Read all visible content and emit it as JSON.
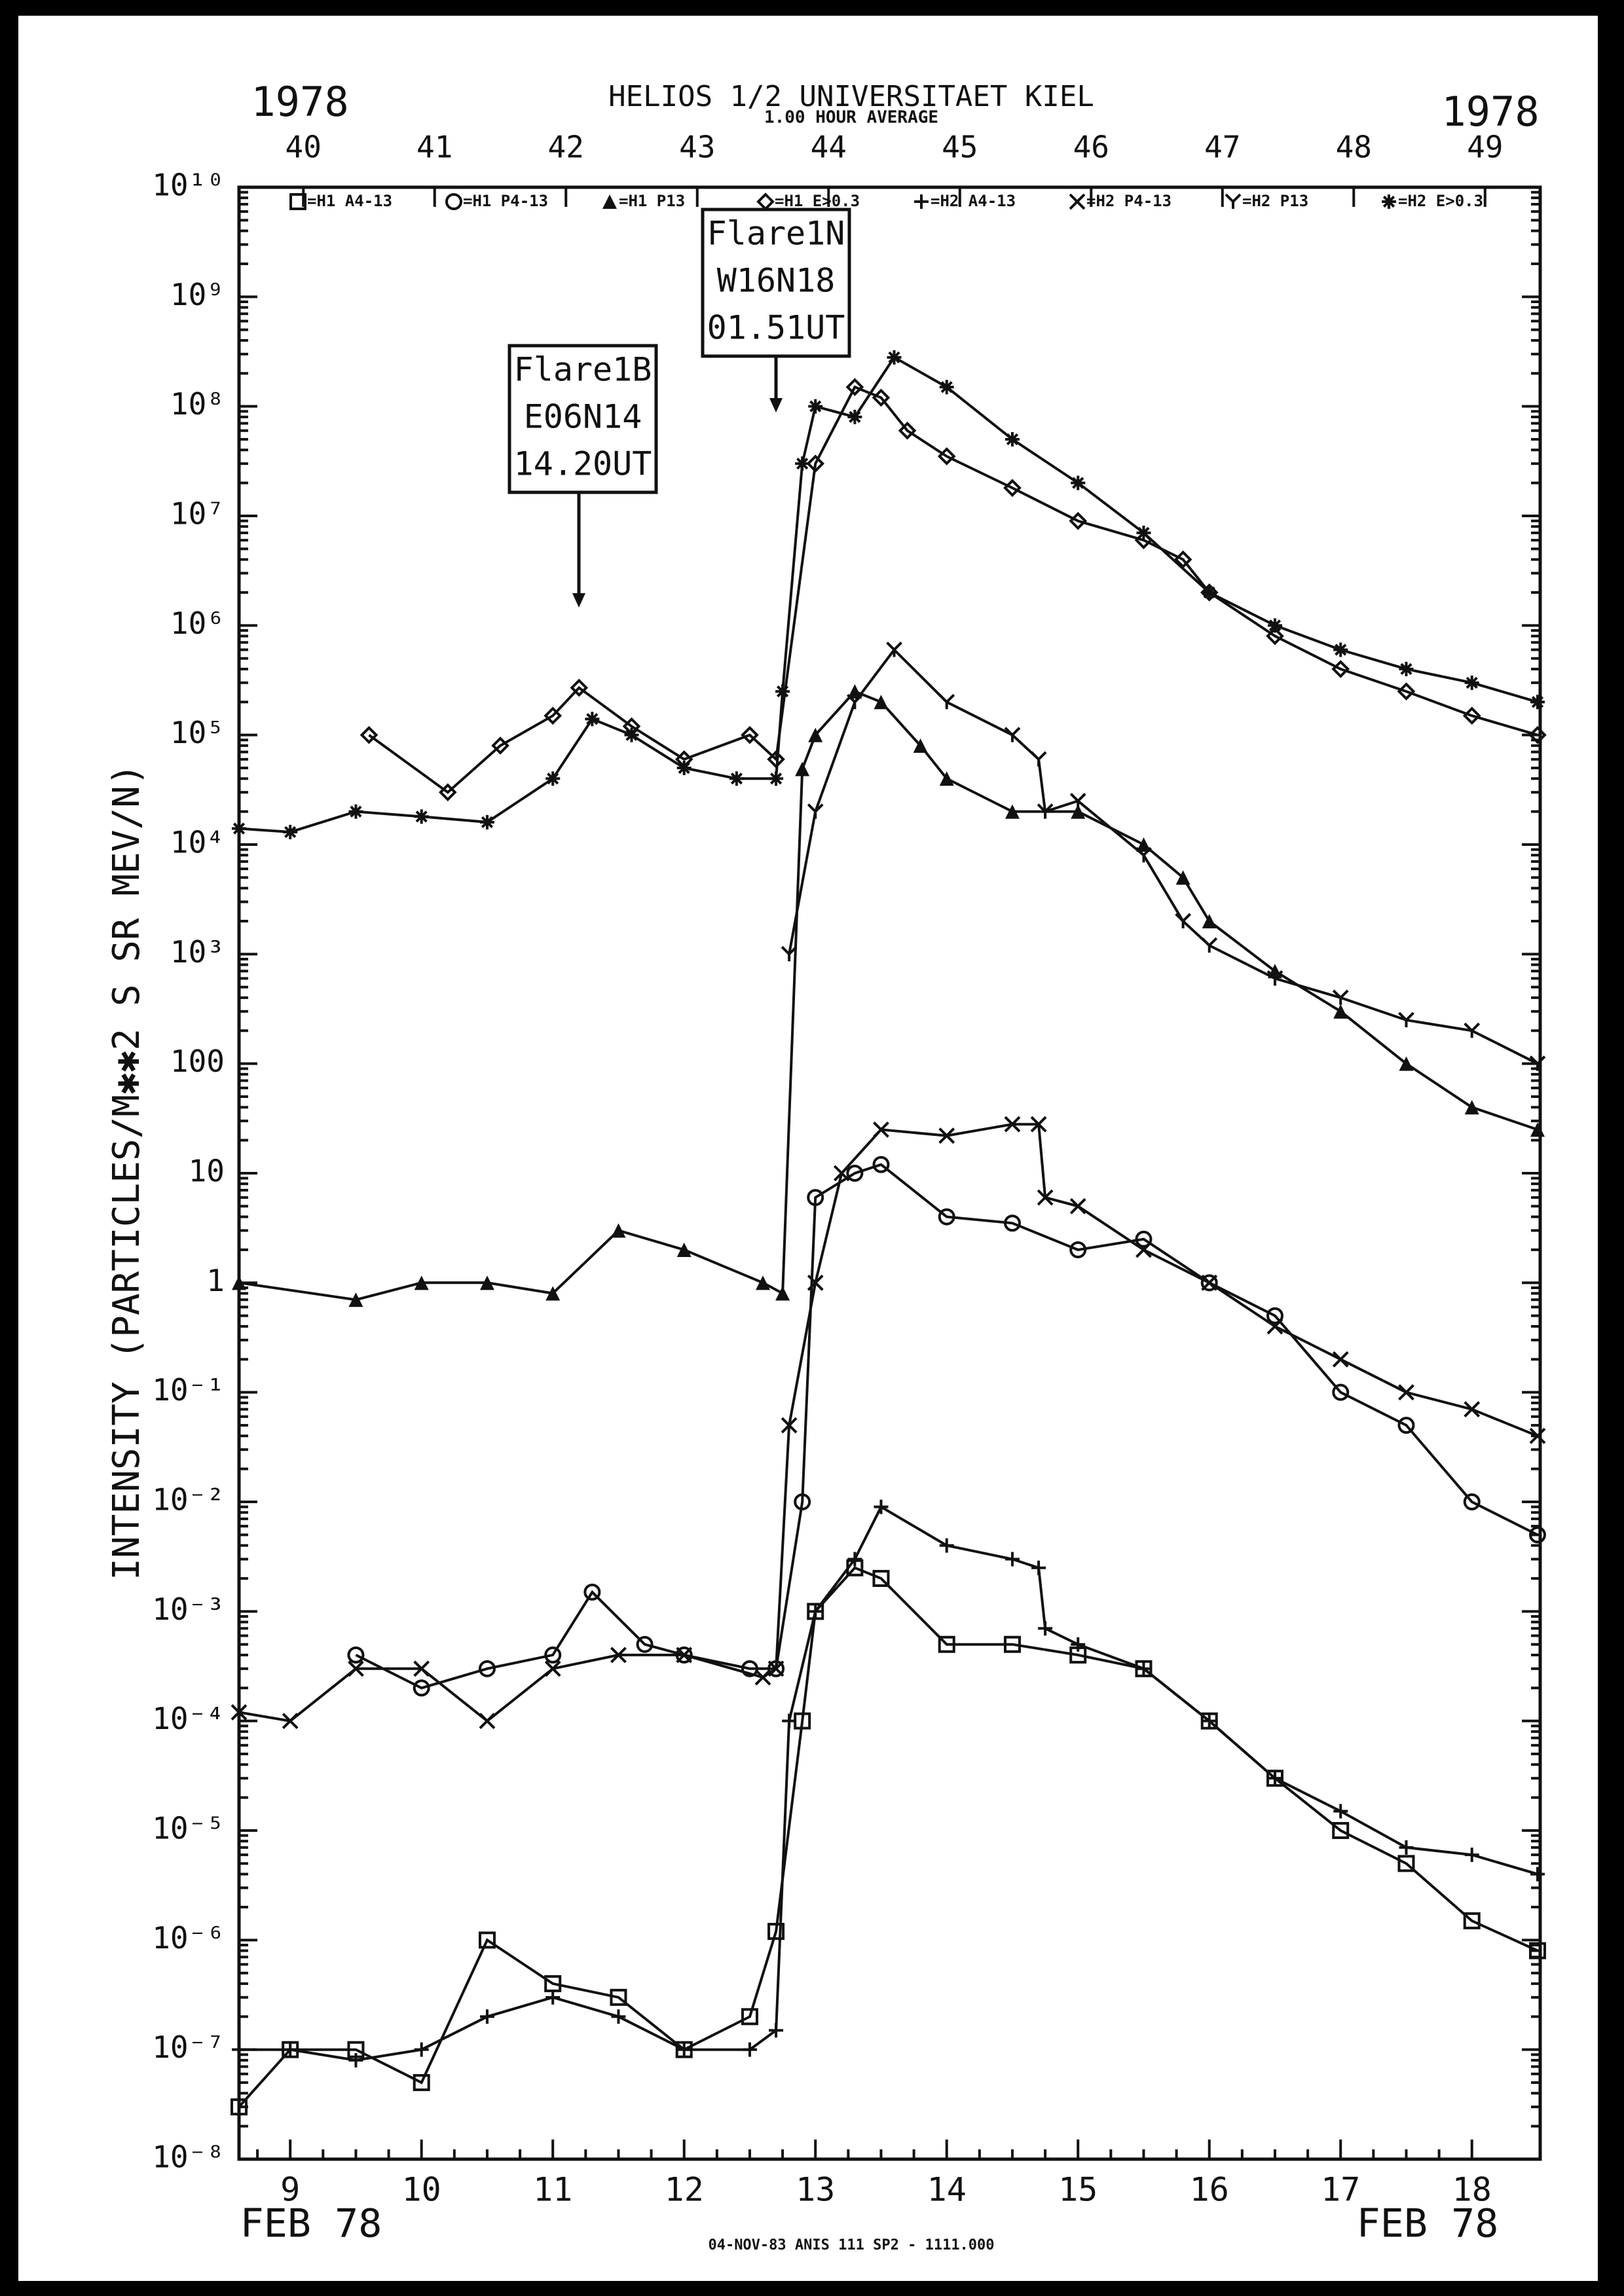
{
  "chart_data": {
    "type": "line",
    "title": "HELIOS 1/2  UNIVERSITAET KIEL",
    "subtitle": "1.00 HOUR AVERAGE",
    "year_left": "1978",
    "year_right": "1978",
    "month_left": "FEB 78",
    "month_right": "FEB 78",
    "ylabel": "INTENSITY (PARTICLES/M✱✱2 S SR MEV/N)",
    "footer": "04-NOV-83 ANIS 111 SP2 - 1111.000",
    "log_y": true,
    "xlim": [
      8.61,
      18.52
    ],
    "xticks": [
      9,
      10,
      11,
      12,
      13,
      14,
      15,
      16,
      17,
      18
    ],
    "x2lim": [
      39.51,
      49.42
    ],
    "x2ticks": [
      40,
      41,
      42,
      43,
      44,
      45,
      46,
      47,
      48,
      49
    ],
    "ylim": [
      1e-08,
      10000000000
    ],
    "yticks": [
      {
        "value": 10000000000,
        "label": "10¹⁰"
      },
      {
        "value": 1000000000,
        "label": "10⁹"
      },
      {
        "value": 100000000,
        "label": "10⁸"
      },
      {
        "value": 10000000,
        "label": "10⁷"
      },
      {
        "value": 1000000,
        "label": "10⁶"
      },
      {
        "value": 100000,
        "label": "10⁵"
      },
      {
        "value": 10000,
        "label": "10⁴"
      },
      {
        "value": 1000,
        "label": "10³"
      },
      100,
      10,
      1,
      {
        "value": 0.1,
        "label": "10⁻¹"
      },
      {
        "value": 0.01,
        "label": "10⁻²"
      },
      {
        "value": 0.001,
        "label": "10⁻³"
      },
      {
        "value": 0.0001,
        "label": "10⁻⁴"
      },
      {
        "value": 1e-05,
        "label": "10⁻⁵"
      },
      {
        "value": 1e-06,
        "label": "10⁻⁶"
      },
      {
        "value": 1e-07,
        "label": "10⁻⁷"
      },
      {
        "value": 1e-08,
        "label": "10⁻⁸"
      }
    ],
    "annotations": [
      {
        "lines": [
          "Flare1B",
          "E06N14",
          "14.20UT"
        ]
      },
      {
        "lines": [
          "Flare1N",
          "W16N18",
          "01.51UT"
        ]
      }
    ],
    "series": [
      {
        "name": "=H1 A4-13",
        "marker": "square",
        "color": "#111111",
        "x": [
          8.61,
          9,
          9.5,
          10,
          10.5,
          11,
          11.5,
          12,
          12.5,
          12.7,
          12.9,
          13,
          13.3,
          13.5,
          14,
          14.5,
          15,
          15.5,
          16,
          16.5,
          17,
          17.5,
          18,
          18.5
        ],
        "values": [
          3e-08,
          1e-07,
          1e-07,
          5e-08,
          1e-06,
          4e-07,
          3e-07,
          1e-07,
          2e-07,
          1.2e-06,
          0.0001,
          0.001,
          0.0025,
          0.002,
          0.0005,
          0.0005,
          0.0004,
          0.0003,
          0.0001,
          3e-05,
          1e-05,
          5e-06,
          1.5e-06,
          8e-07
        ]
      },
      {
        "name": "=H1 P4-13",
        "marker": "circle",
        "color": "#111111",
        "x": [
          9.5,
          10,
          10.5,
          11,
          11.3,
          11.7,
          12,
          12.5,
          12.7,
          12.9,
          13,
          13.3,
          13.5,
          14,
          14.5,
          15,
          15.5,
          16,
          16.5,
          17,
          17.5,
          18,
          18.5
        ],
        "values": [
          0.0004,
          0.0002,
          0.0003,
          0.0004,
          0.0015,
          0.0005,
          0.0004,
          0.0003,
          0.0003,
          0.01,
          6,
          10,
          12,
          4,
          3.5,
          2,
          2.5,
          1,
          0.5,
          0.1,
          0.05,
          0.01,
          0.005
        ]
      },
      {
        "name": "=H1 P13",
        "marker": "triangle",
        "color": "#111111",
        "x": [
          8.61,
          9.5,
          10,
          10.5,
          11,
          11.5,
          12,
          12.6,
          12.75,
          12.9,
          13,
          13.3,
          13.5,
          13.8,
          14,
          14.5,
          15,
          15.5,
          15.8,
          16,
          16.5,
          17,
          17.5,
          18,
          18.5
        ],
        "values": [
          1,
          0.7,
          1,
          1,
          0.8,
          3,
          2,
          1,
          0.8,
          49000,
          100000,
          250000,
          200000,
          80000,
          40000,
          20000,
          20000,
          10000,
          5000,
          2000,
          700,
          300,
          100,
          40,
          25
        ]
      },
      {
        "name": "=H1 E>0.3",
        "marker": "diamond",
        "color": "#111111",
        "x": [
          9.6,
          10.2,
          10.6,
          11,
          11.2,
          11.6,
          12,
          12.5,
          12.7,
          13,
          13.3,
          13.5,
          13.7,
          14,
          14.5,
          15,
          15.5,
          15.8,
          16,
          16.5,
          17,
          17.5,
          18,
          18.5
        ],
        "values": [
          100000,
          30000,
          80000,
          150000,
          270000,
          120000,
          60000,
          100000,
          60000,
          30000000,
          150000000,
          120000000,
          60000000,
          35000000,
          18000000,
          9000000,
          6000000,
          4000000,
          2000000,
          800000,
          400000,
          250000,
          150000,
          100000
        ]
      },
      {
        "name": "=H2 A4-13",
        "marker": "plus",
        "color": "#111111",
        "x": [
          8.61,
          9,
          9.5,
          10,
          10.5,
          11,
          11.5,
          12,
          12.5,
          12.7,
          12.8,
          13,
          13.3,
          13.5,
          14,
          14.5,
          14.7,
          14.75,
          15,
          15.5,
          16,
          16.5,
          17,
          17.5,
          18,
          18.5
        ],
        "values": [
          1e-07,
          1e-07,
          8e-08,
          1e-07,
          2e-07,
          3e-07,
          2e-07,
          1e-07,
          1e-07,
          1.5e-07,
          0.0001,
          0.001,
          0.003,
          0.009,
          0.004,
          0.003,
          0.0025,
          0.0007,
          0.0005,
          0.0003,
          0.0001,
          3e-05,
          1.5e-05,
          7e-06,
          6e-06,
          4e-06
        ]
      },
      {
        "name": "=H2 P4-13",
        "marker": "cross",
        "color": "#111111",
        "x": [
          8.61,
          9,
          9.5,
          10,
          10.5,
          11,
          11.5,
          12,
          12.6,
          12.7,
          12.8,
          13,
          13.2,
          13.5,
          14,
          14.5,
          14.7,
          14.75,
          15,
          15.5,
          16,
          16.5,
          17,
          17.5,
          18,
          18.5
        ],
        "values": [
          0.00012,
          0.0001,
          0.0003,
          0.0003,
          0.0001,
          0.0003,
          0.0004,
          0.0004,
          0.00025,
          0.0003,
          0.05,
          1,
          10,
          25,
          22,
          28,
          28,
          6,
          5,
          2,
          1,
          0.4,
          0.2,
          0.1,
          0.07,
          0.04
        ]
      },
      {
        "name": "=H2 P13",
        "marker": "y",
        "color": "#111111",
        "x": [
          12.8,
          13,
          13.3,
          13.6,
          14,
          14.5,
          14.7,
          14.75,
          15,
          15.5,
          15.8,
          16,
          16.5,
          17,
          17.5,
          18,
          18.5
        ],
        "values": [
          1000,
          20000,
          200000,
          600000,
          200000,
          100000,
          60000,
          20000,
          25000,
          8000,
          2000,
          1200,
          600,
          400,
          250,
          200,
          100
        ]
      },
      {
        "name": "=H2 E>0.3",
        "marker": "asterisk",
        "color": "#111111",
        "x": [
          8.61,
          9,
          9.5,
          10,
          10.5,
          11,
          11.3,
          11.6,
          12,
          12.4,
          12.7,
          12.75,
          12.9,
          13,
          13.3,
          13.6,
          14,
          14.5,
          15,
          15.5,
          16,
          16.5,
          17,
          17.5,
          18,
          18.5
        ],
        "values": [
          14000,
          13000,
          20000,
          18000,
          16000,
          40000,
          140000,
          100000,
          50000,
          40000,
          40000,
          250000,
          30000000,
          100000000,
          80000000,
          280000000,
          150000000,
          50000000,
          20000000,
          7000000,
          2000000,
          1000000,
          600000,
          400000,
          300000,
          200000
        ]
      }
    ]
  }
}
